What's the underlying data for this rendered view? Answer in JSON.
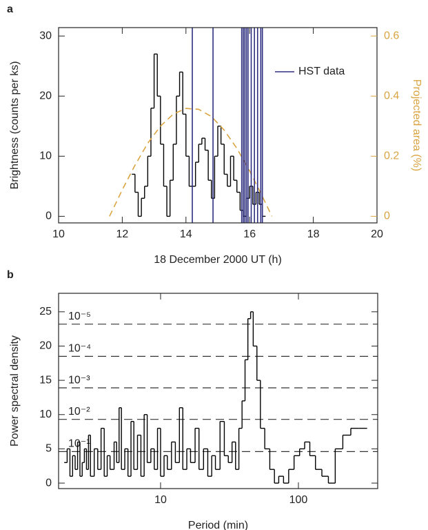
{
  "chart_data": [
    {
      "type": "step",
      "panel_label": "a",
      "x_label": "18 December 2000 UT (h)",
      "y_label": "Brightness (counts per ks)",
      "y2_label": "Projected area (%)",
      "xlim": [
        10,
        20
      ],
      "xticks": [
        10,
        12,
        14,
        16,
        18,
        20
      ],
      "ylim": [
        -1.1,
        31.4
      ],
      "yticks": [
        0,
        10,
        20,
        30
      ],
      "y2lim": [
        -0.022,
        0.628
      ],
      "y2ticks": [
        0,
        0.2,
        0.4,
        0.6
      ],
      "y2_color": "#d9a441",
      "series": [
        {
          "color": "#000000",
          "x": [
            12.3,
            12.4,
            12.5,
            12.6,
            12.7,
            12.8,
            12.9,
            13.0,
            13.1,
            13.2,
            13.3,
            13.4,
            13.5,
            13.6,
            13.7,
            13.8,
            13.9,
            14.0,
            14.1,
            14.2,
            14.3,
            14.4,
            14.5,
            14.6,
            14.7,
            14.8,
            14.9,
            15.0,
            15.1,
            15.2,
            15.3,
            15.4,
            15.5,
            15.6,
            15.7,
            15.8,
            15.9,
            16.0,
            16.1,
            16.2,
            16.3,
            16.4
          ],
          "values": [
            7,
            4,
            0,
            3,
            5,
            10,
            18,
            27,
            20,
            12,
            5,
            0,
            6,
            12,
            20,
            24,
            17,
            10,
            5,
            5,
            9,
            12,
            13,
            11,
            6,
            3,
            10,
            15,
            12,
            7,
            5,
            10,
            6,
            4,
            1,
            0,
            3,
            5,
            2,
            4,
            2,
            0
          ]
        },
        {
          "color": "#d9a441",
          "axis": "y2",
          "dashed": true,
          "x": [
            11.6,
            12.0,
            12.4,
            12.8,
            13.2,
            13.6,
            14.0,
            14.4,
            14.8,
            15.2,
            15.6,
            16.0,
            16.4,
            16.7
          ],
          "values": [
            0,
            0.088,
            0.17,
            0.243,
            0.3,
            0.34,
            0.359,
            0.356,
            0.332,
            0.287,
            0.226,
            0.151,
            0.066,
            0
          ]
        }
      ],
      "vertical_lines": {
        "name": "HST data",
        "color": "#2e2e80",
        "x": [
          14.2,
          14.85,
          15.75,
          15.8,
          15.85,
          15.9,
          15.95,
          16.05,
          16.15,
          16.25,
          16.35,
          16.4
        ]
      },
      "legend": "upper right"
    },
    {
      "type": "step",
      "panel_label": "b",
      "xscale": "log",
      "x_label": "Period (min)",
      "y_label": "Power spectral density",
      "xlim": [
        1.82,
        376
      ],
      "xticks": [
        10,
        100
      ],
      "ylim": [
        -0.8,
        27.7
      ],
      "yticks": [
        0,
        5,
        10,
        15,
        20,
        25
      ],
      "series": [
        {
          "color": "#000000",
          "x": [
            2.0,
            2.1,
            2.2,
            2.3,
            2.4,
            2.5,
            2.6,
            2.7,
            2.8,
            2.9,
            3.0,
            3.1,
            3.3,
            3.5,
            3.7,
            3.9,
            4.1,
            4.3,
            4.6,
            4.8,
            5.0,
            5.2,
            5.5,
            5.8,
            6.1,
            6.4,
            6.8,
            7.2,
            7.6,
            8.0,
            8.5,
            9.0,
            9.5,
            10.0,
            10.6,
            11.2,
            12.0,
            12.8,
            13.7,
            14.5,
            15.5,
            16.5,
            17.8,
            19,
            20.5,
            22,
            23.5,
            25,
            27,
            29,
            31,
            33,
            35,
            37,
            39,
            41,
            43,
            45,
            47,
            50,
            53,
            57,
            62,
            67,
            72,
            78,
            85,
            93,
            102,
            111,
            121,
            133,
            148,
            165,
            185,
            210,
            240,
            275
          ],
          "values": [
            3,
            5,
            1,
            4,
            2,
            6,
            1,
            3,
            5,
            2,
            7,
            1,
            5,
            2,
            8,
            1,
            4,
            2,
            6,
            3,
            11,
            2,
            5,
            1,
            9,
            2,
            7,
            1,
            10,
            3,
            5,
            2,
            8,
            1,
            4,
            2,
            6,
            3,
            11,
            2,
            5,
            3,
            8,
            2,
            5,
            1,
            4,
            2,
            9,
            4,
            3,
            6,
            2,
            8,
            12,
            18,
            24,
            25,
            20,
            15,
            8,
            5,
            2,
            0,
            1,
            0,
            2,
            4,
            5,
            6,
            4,
            2,
            1,
            0,
            5,
            7,
            8,
            8
          ]
        }
      ],
      "reference_lines": [
        {
          "y": 23.2,
          "label": "10⁻⁵"
        },
        {
          "y": 18.5,
          "label": "10⁻⁴"
        },
        {
          "y": 13.9,
          "label": "10⁻³"
        },
        {
          "y": 9.3,
          "label": "10⁻²"
        },
        {
          "y": 4.6,
          "label": "10⁻¹"
        }
      ]
    }
  ]
}
